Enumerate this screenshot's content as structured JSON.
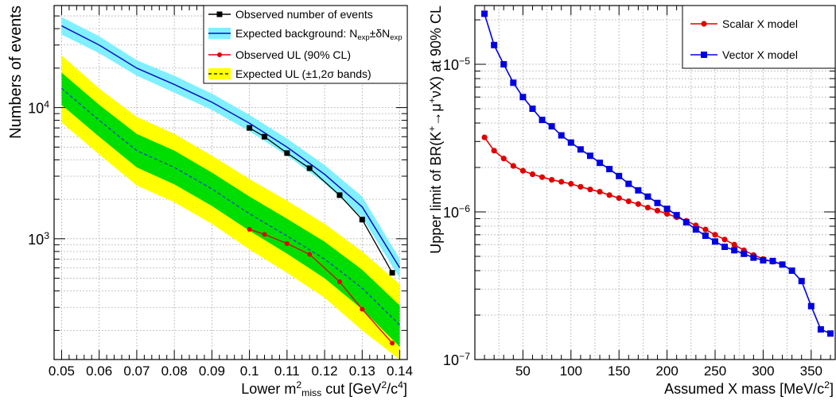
{
  "chart_data": [
    {
      "type": "line",
      "xlabel_parts": [
        "Lower m",
        "2",
        "miss",
        " cut [GeV",
        "2",
        "/c",
        "4",
        "]"
      ],
      "ylabel": "Numbers of events",
      "xlim": [
        0.048,
        0.142
      ],
      "ylim": [
        120,
        60000
      ],
      "yscale": "log",
      "grid": true,
      "legend_position": "top-right",
      "x_tick_labels": [
        "0.05",
        "0.06",
        "0.07",
        "0.08",
        "0.09",
        "0.1",
        "0.11",
        "0.12",
        "0.13",
        "0.14"
      ],
      "x_ticks": [
        0.05,
        0.06,
        0.07,
        0.08,
        0.09,
        0.1,
        0.11,
        0.12,
        0.13,
        0.14
      ],
      "y_tick_labels": [
        {
          "value": 1000,
          "base": "10",
          "exp": "3"
        },
        {
          "value": 10000,
          "base": "10",
          "exp": "4"
        }
      ],
      "legend": [
        {
          "key": "observed_events",
          "label": "Observed number of events"
        },
        {
          "key": "expected_background",
          "label_parts": [
            "Expected background: N",
            "exp",
            "±δN",
            "exp"
          ]
        },
        {
          "key": "observed_ul",
          "label": "Observed UL (90% CL)"
        },
        {
          "key": "expected_ul",
          "label": "Expected UL (±1,2σ bands)"
        }
      ],
      "colors": {
        "observed_events": "#000000",
        "background_band": "#80f0ff",
        "background_line": "#1010c0",
        "observed_ul": "#e00000",
        "expected_line": "#1a3fbf",
        "band_1sigma": "#00dd00",
        "band_2sigma": "#ffff00"
      },
      "x": [
        0.05,
        0.06,
        0.07,
        0.08,
        0.09,
        0.1,
        0.11,
        0.12,
        0.13,
        0.14
      ],
      "series": [
        {
          "key": "expected_background",
          "values": [
            42000,
            30000,
            20000,
            15000,
            11000,
            7600,
            5000,
            3100,
            1750,
            600
          ],
          "band_low": [
            36000,
            26000,
            17500,
            13000,
            9600,
            6600,
            4300,
            2650,
            1450,
            500
          ],
          "band_high": [
            49000,
            35000,
            23000,
            17500,
            12800,
            8800,
            5800,
            3650,
            2100,
            700
          ]
        },
        {
          "key": "expected_ul",
          "values": [
            14000,
            8000,
            4700,
            3500,
            2400,
            1550,
            1050,
            700,
            420,
            220
          ],
          "band_1sigma_low": [
            10500,
            6000,
            3500,
            2600,
            1780,
            1150,
            770,
            500,
            290,
            150
          ],
          "band_1sigma_high": [
            18500,
            10500,
            6300,
            4700,
            3200,
            2100,
            1420,
            950,
            580,
            310
          ],
          "band_2sigma_low": [
            7700,
            4400,
            2550,
            1900,
            1300,
            830,
            550,
            355,
            200,
            120
          ],
          "band_2sigma_high": [
            25000,
            14000,
            8500,
            6300,
            4300,
            2850,
            1950,
            1300,
            800,
            450
          ]
        },
        {
          "key": "observed_events",
          "x": [
            0.1,
            0.104,
            0.11,
            0.116,
            0.124,
            0.13,
            0.138
          ],
          "values": [
            7000,
            6000,
            4500,
            3450,
            2150,
            1400,
            550
          ]
        },
        {
          "key": "observed_ul",
          "x": [
            0.1,
            0.104,
            0.11,
            0.116,
            0.124,
            0.13,
            0.138
          ],
          "values": [
            1180,
            1080,
            920,
            760,
            470,
            290,
            160
          ]
        }
      ]
    },
    {
      "type": "line",
      "xlabel_parts": [
        "Assumed X mass [MeV/c",
        "2",
        "]"
      ],
      "ylabel_parts": [
        "Upper limit of BR(K",
        "+",
        "→μ",
        "+",
        "νX) at 90% CL"
      ],
      "xlim": [
        0,
        375
      ],
      "ylim": [
        1e-07,
        2.5e-05
      ],
      "yscale": "log",
      "grid": true,
      "legend_position": "top-right",
      "x_tick_labels": [
        "50",
        "100",
        "150",
        "200",
        "250",
        "300",
        "350"
      ],
      "x_ticks": [
        50,
        100,
        150,
        200,
        250,
        300,
        350
      ],
      "y_tick_labels": [
        {
          "value": 1e-07,
          "base": "10",
          "exp": "−7"
        },
        {
          "value": 1e-06,
          "base": "10",
          "exp": "−6"
        },
        {
          "value": 1e-05,
          "base": "10",
          "exp": "−5"
        }
      ],
      "legend": [
        {
          "key": "scalar",
          "label": "Scalar X model"
        },
        {
          "key": "vector",
          "label": "Vector X model"
        }
      ],
      "colors": {
        "scalar": "#e00000",
        "vector": "#0000e0"
      },
      "series": [
        {
          "key": "scalar",
          "x": [
            10,
            20,
            30,
            40,
            50,
            60,
            70,
            80,
            90,
            100,
            110,
            120,
            130,
            140,
            150,
            160,
            170,
            180,
            190,
            200,
            210,
            220,
            230,
            240,
            250,
            260,
            270,
            280,
            290,
            300,
            310,
            320
          ],
          "values": [
            3.2e-06,
            2.6e-06,
            2.3e-06,
            2.05e-06,
            1.9e-06,
            1.8e-06,
            1.72e-06,
            1.65e-06,
            1.6e-06,
            1.55e-06,
            1.48e-06,
            1.42e-06,
            1.37e-06,
            1.3e-06,
            1.24e-06,
            1.18e-06,
            1.13e-06,
            1.07e-06,
            1.02e-06,
            9.7e-07,
            9.2e-07,
            8.7e-07,
            8.1e-07,
            7.6e-07,
            7e-07,
            6.5e-07,
            6e-07,
            5.5e-07,
            5.1e-07,
            4.8e-07,
            4.6e-07,
            4.4e-07
          ]
        },
        {
          "key": "vector",
          "x": [
            10,
            20,
            30,
            40,
            50,
            60,
            70,
            80,
            90,
            100,
            110,
            120,
            130,
            140,
            150,
            160,
            170,
            180,
            190,
            200,
            210,
            220,
            230,
            240,
            250,
            260,
            270,
            280,
            290,
            300,
            310,
            320,
            330,
            340,
            350,
            360,
            370
          ],
          "values": [
            2.2e-05,
            1.35e-05,
            1e-05,
            7.5e-06,
            6e-06,
            5e-06,
            4.2e-06,
            3.8e-06,
            3.3e-06,
            2.95e-06,
            2.65e-06,
            2.4e-06,
            2.15e-06,
            1.95e-06,
            1.75e-06,
            1.55e-06,
            1.4e-06,
            1.27e-06,
            1.15e-06,
            1.05e-06,
            9.5e-07,
            8.5e-07,
            7.6e-07,
            6.9e-07,
            6.3e-07,
            5.8e-07,
            5.5e-07,
            5.2e-07,
            4.9e-07,
            4.7e-07,
            4.65e-07,
            4.4e-07,
            4e-07,
            3.4e-07,
            2.3e-07,
            1.6e-07,
            1.5e-07
          ]
        }
      ]
    }
  ]
}
